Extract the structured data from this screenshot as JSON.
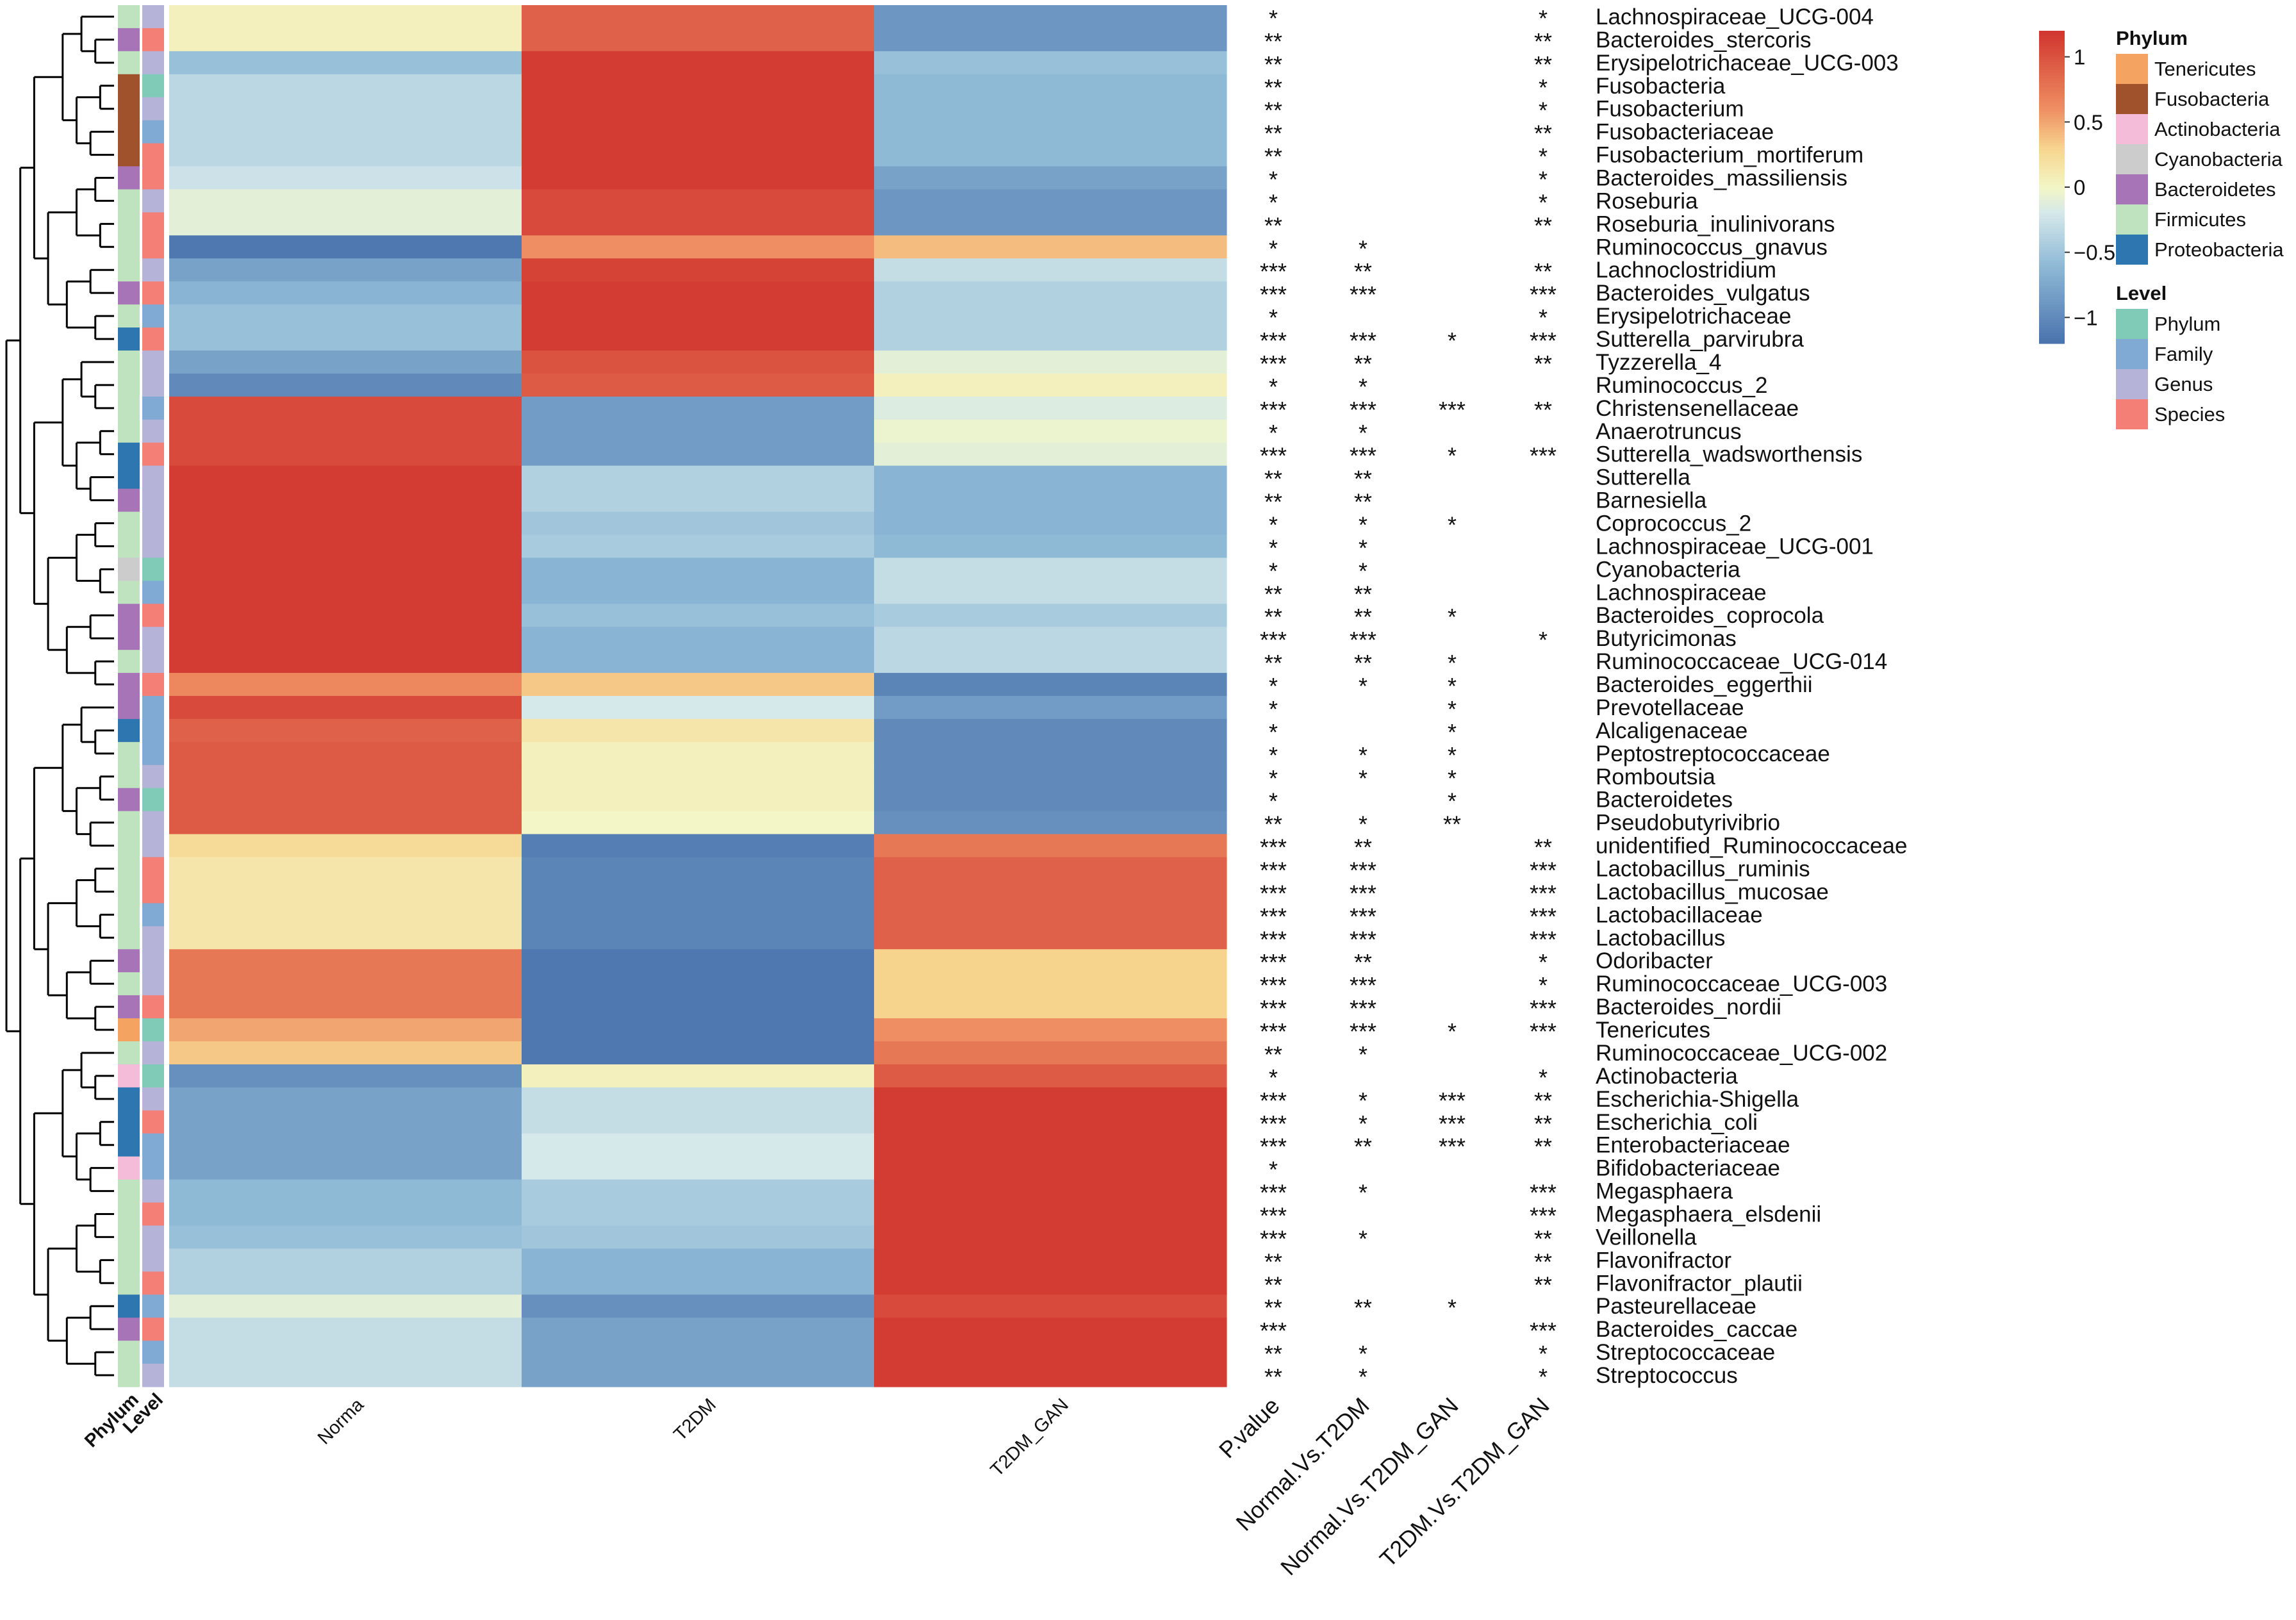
{
  "chart_data": {
    "type": "heatmap",
    "title": "",
    "groups": [
      "Norma",
      "T2DM",
      "T2DM_GAN"
    ],
    "significance_headers": [
      "P.value",
      "Normal.Vs.T2DM",
      "Normal.Vs.T2DM_GAN",
      "T2DM.Vs.T2DM_GAN"
    ],
    "annotation_headers": [
      "Phylum",
      "Level"
    ],
    "color_scale": {
      "min": -1.2,
      "max": 1.2,
      "stops": [
        {
          "value": -1.2,
          "color": "#4a72ad"
        },
        {
          "value": -0.6,
          "color": "#8fbad6"
        },
        {
          "value": -0.2,
          "color": "#d5e8ea"
        },
        {
          "value": 0.0,
          "color": "#f3f6c6"
        },
        {
          "value": 0.3,
          "color": "#f7d48e"
        },
        {
          "value": 0.6,
          "color": "#ee8e62"
        },
        {
          "value": 1.2,
          "color": "#d0342f"
        }
      ],
      "ticks": [
        1,
        0.5,
        0,
        -0.5,
        -1
      ],
      "tick_labels": [
        "1",
        "0.5",
        "0",
        "−0.5",
        "−1"
      ]
    },
    "phylum_legend": {
      "title": "Phylum",
      "items": [
        {
          "name": "Tenericutes",
          "color": "#f4a460"
        },
        {
          "name": "Fusobacteria",
          "color": "#a0522d"
        },
        {
          "name": "Actinobacteria",
          "color": "#f5bcd9"
        },
        {
          "name": "Cyanobacteria",
          "color": "#cccccc"
        },
        {
          "name": "Bacteroidetes",
          "color": "#a874b8"
        },
        {
          "name": "Firmicutes",
          "color": "#bfe2bf"
        },
        {
          "name": "Proteobacteria",
          "color": "#2e76b0"
        }
      ]
    },
    "level_legend": {
      "title": "Level",
      "items": [
        {
          "name": "Phylum",
          "color": "#7fcbb7"
        },
        {
          "name": "Family",
          "color": "#80aad4"
        },
        {
          "name": "Genus",
          "color": "#b5b4d8"
        },
        {
          "name": "Species",
          "color": "#f37f77"
        }
      ]
    },
    "rows": [
      {
        "taxon": "Lachnospiraceae_UCG-004",
        "phylum": "Firmicutes",
        "level": "Genus",
        "values": [
          0.05,
          0.9,
          -0.9
        ],
        "sig": [
          "*",
          "",
          "",
          "*"
        ]
      },
      {
        "taxon": "Bacteroides_stercoris",
        "phylum": "Bacteroidetes",
        "level": "Species",
        "values": [
          0.05,
          0.9,
          -0.9
        ],
        "sig": [
          "**",
          "",
          "",
          "**"
        ]
      },
      {
        "taxon": "Erysipelotrichaceae_UCG-003",
        "phylum": "Firmicutes",
        "level": "Genus",
        "values": [
          -0.55,
          1.15,
          -0.55
        ],
        "sig": [
          "**",
          "",
          "",
          "**"
        ]
      },
      {
        "taxon": "Fusobacteria",
        "phylum": "Fusobacteria",
        "level": "Phylum",
        "values": [
          -0.35,
          1.15,
          -0.6
        ],
        "sig": [
          "**",
          "",
          "",
          "*"
        ]
      },
      {
        "taxon": "Fusobacterium",
        "phylum": "Fusobacteria",
        "level": "Genus",
        "values": [
          -0.35,
          1.15,
          -0.6
        ],
        "sig": [
          "**",
          "",
          "",
          "*"
        ]
      },
      {
        "taxon": "Fusobacteriaceae",
        "phylum": "Fusobacteria",
        "level": "Family",
        "values": [
          -0.35,
          1.15,
          -0.6
        ],
        "sig": [
          "**",
          "",
          "",
          "**"
        ]
      },
      {
        "taxon": "Fusobacterium_mortiferum",
        "phylum": "Fusobacteria",
        "level": "Species",
        "values": [
          -0.35,
          1.15,
          -0.6
        ],
        "sig": [
          "**",
          "",
          "",
          "*"
        ]
      },
      {
        "taxon": "Bacteroides_massiliensis",
        "phylum": "Bacteroidetes",
        "level": "Species",
        "values": [
          -0.25,
          1.15,
          -0.8
        ],
        "sig": [
          "*",
          "",
          "",
          "*"
        ]
      },
      {
        "taxon": "Roseburia",
        "phylum": "Firmicutes",
        "level": "Genus",
        "values": [
          -0.1,
          1.05,
          -0.9
        ],
        "sig": [
          "*",
          "",
          "",
          "*"
        ]
      },
      {
        "taxon": "Roseburia_inulinivorans",
        "phylum": "Firmicutes",
        "level": "Species",
        "values": [
          -0.1,
          1.05,
          -0.9
        ],
        "sig": [
          "**",
          "",
          "",
          "**"
        ]
      },
      {
        "taxon": "Ruminococcus_gnavus",
        "phylum": "Firmicutes",
        "level": "Species",
        "values": [
          -1.15,
          0.6,
          0.4
        ],
        "sig": [
          "*",
          "*",
          "",
          ""
        ]
      },
      {
        "taxon": "Lachnoclostridium",
        "phylum": "Firmicutes",
        "level": "Genus",
        "values": [
          -0.8,
          1.1,
          -0.3
        ],
        "sig": [
          "***",
          "**",
          "",
          "**"
        ]
      },
      {
        "taxon": "Bacteroides_vulgatus",
        "phylum": "Bacteroidetes",
        "level": "Species",
        "values": [
          -0.65,
          1.15,
          -0.4
        ],
        "sig": [
          "***",
          "***",
          "",
          "***"
        ]
      },
      {
        "taxon": "Erysipelotrichaceae",
        "phylum": "Firmicutes",
        "level": "Family",
        "values": [
          -0.55,
          1.15,
          -0.4
        ],
        "sig": [
          "*",
          "",
          "",
          "*"
        ]
      },
      {
        "taxon": "Sutterella_parvirubra",
        "phylum": "Proteobacteria",
        "level": "Species",
        "values": [
          -0.55,
          1.15,
          -0.4
        ],
        "sig": [
          "***",
          "***",
          "*",
          "***"
        ]
      },
      {
        "taxon": "Tyzzerella_4",
        "phylum": "Firmicutes",
        "level": "Genus",
        "values": [
          -0.8,
          1.0,
          -0.1
        ],
        "sig": [
          "***",
          "**",
          "",
          "**"
        ]
      },
      {
        "taxon": "Ruminococcus_2",
        "phylum": "Firmicutes",
        "level": "Genus",
        "values": [
          -1.0,
          0.95,
          0.05
        ],
        "sig": [
          "*",
          "*",
          "",
          ""
        ]
      },
      {
        "taxon": "Christensenellaceae",
        "phylum": "Firmicutes",
        "level": "Family",
        "values": [
          1.05,
          -0.85,
          -0.15
        ],
        "sig": [
          "***",
          "***",
          "***",
          "**"
        ]
      },
      {
        "taxon": "Anaerotruncus",
        "phylum": "Firmicutes",
        "level": "Genus",
        "values": [
          1.05,
          -0.85,
          -0.05
        ],
        "sig": [
          "*",
          "*",
          "",
          ""
        ]
      },
      {
        "taxon": "Sutterella_wadsworthensis",
        "phylum": "Proteobacteria",
        "level": "Species",
        "values": [
          1.05,
          -0.85,
          -0.1
        ],
        "sig": [
          "***",
          "***",
          "*",
          "***"
        ]
      },
      {
        "taxon": "Sutterella",
        "phylum": "Proteobacteria",
        "level": "Genus",
        "values": [
          1.15,
          -0.4,
          -0.65
        ],
        "sig": [
          "**",
          "**",
          "",
          ""
        ]
      },
      {
        "taxon": "Barnesiella",
        "phylum": "Bacteroidetes",
        "level": "Genus",
        "values": [
          1.15,
          -0.4,
          -0.65
        ],
        "sig": [
          "**",
          "**",
          "",
          ""
        ]
      },
      {
        "taxon": "Coprococcus_2",
        "phylum": "Firmicutes",
        "level": "Genus",
        "values": [
          1.15,
          -0.5,
          -0.65
        ],
        "sig": [
          "*",
          "*",
          "*",
          ""
        ]
      },
      {
        "taxon": "Lachnospiraceae_UCG-001",
        "phylum": "Firmicutes",
        "level": "Genus",
        "values": [
          1.15,
          -0.45,
          -0.6
        ],
        "sig": [
          "*",
          "*",
          "",
          ""
        ]
      },
      {
        "taxon": "Cyanobacteria",
        "phylum": "Cyanobacteria",
        "level": "Phylum",
        "values": [
          1.15,
          -0.65,
          -0.3
        ],
        "sig": [
          "*",
          "*",
          "",
          ""
        ]
      },
      {
        "taxon": "Lachnospiraceae",
        "phylum": "Firmicutes",
        "level": "Family",
        "values": [
          1.15,
          -0.65,
          -0.3
        ],
        "sig": [
          "**",
          "**",
          "",
          ""
        ]
      },
      {
        "taxon": "Bacteroides_coprocola",
        "phylum": "Bacteroidetes",
        "level": "Species",
        "values": [
          1.15,
          -0.55,
          -0.45
        ],
        "sig": [
          "**",
          "**",
          "*",
          ""
        ]
      },
      {
        "taxon": "Butyricimonas",
        "phylum": "Bacteroidetes",
        "level": "Genus",
        "values": [
          1.15,
          -0.65,
          -0.35
        ],
        "sig": [
          "***",
          "***",
          "",
          "*"
        ]
      },
      {
        "taxon": "Ruminococcaceae_UCG-014",
        "phylum": "Firmicutes",
        "level": "Genus",
        "values": [
          1.15,
          -0.65,
          -0.35
        ],
        "sig": [
          "**",
          "**",
          "*",
          ""
        ]
      },
      {
        "taxon": "Bacteroides_eggerthii",
        "phylum": "Bacteroidetes",
        "level": "Species",
        "values": [
          0.65,
          0.35,
          -1.05
        ],
        "sig": [
          "*",
          "*",
          "*",
          ""
        ]
      },
      {
        "taxon": "Prevotellaceae",
        "phylum": "Bacteroidetes",
        "level": "Family",
        "values": [
          1.05,
          -0.2,
          -0.85
        ],
        "sig": [
          "*",
          "",
          "*",
          ""
        ]
      },
      {
        "taxon": "Alcaligenaceae",
        "phylum": "Proteobacteria",
        "level": "Family",
        "values": [
          0.9,
          0.15,
          -1.0
        ],
        "sig": [
          "*",
          "",
          "*",
          ""
        ]
      },
      {
        "taxon": "Peptostreptococcaceae",
        "phylum": "Firmicutes",
        "level": "Family",
        "values": [
          0.95,
          0.05,
          -1.0
        ],
        "sig": [
          "*",
          "*",
          "*",
          ""
        ]
      },
      {
        "taxon": "Romboutsia",
        "phylum": "Firmicutes",
        "level": "Genus",
        "values": [
          0.95,
          0.05,
          -1.0
        ],
        "sig": [
          "*",
          "*",
          "*",
          ""
        ]
      },
      {
        "taxon": "Bacteroidetes",
        "phylum": "Bacteroidetes",
        "level": "Phylum",
        "values": [
          0.95,
          0.05,
          -1.0
        ],
        "sig": [
          "*",
          "",
          "*",
          ""
        ]
      },
      {
        "taxon": "Pseudobutyrivibrio",
        "phylum": "Firmicutes",
        "level": "Genus",
        "values": [
          0.95,
          0.0,
          -0.95
        ],
        "sig": [
          "**",
          "*",
          "**",
          ""
        ]
      },
      {
        "taxon": "unidentified_Ruminococcaceae",
        "phylum": "Firmicutes",
        "level": "Genus",
        "values": [
          0.25,
          -1.1,
          0.75
        ],
        "sig": [
          "***",
          "**",
          "",
          "**"
        ]
      },
      {
        "taxon": "Lactobacillus_ruminis",
        "phylum": "Firmicutes",
        "level": "Species",
        "values": [
          0.15,
          -1.05,
          0.9
        ],
        "sig": [
          "***",
          "***",
          "",
          "***"
        ]
      },
      {
        "taxon": "Lactobacillus_mucosae",
        "phylum": "Firmicutes",
        "level": "Species",
        "values": [
          0.15,
          -1.05,
          0.9
        ],
        "sig": [
          "***",
          "***",
          "",
          "***"
        ]
      },
      {
        "taxon": "Lactobacillaceae",
        "phylum": "Firmicutes",
        "level": "Family",
        "values": [
          0.15,
          -1.05,
          0.9
        ],
        "sig": [
          "***",
          "***",
          "",
          "***"
        ]
      },
      {
        "taxon": "Lactobacillus",
        "phylum": "Firmicutes",
        "level": "Genus",
        "values": [
          0.15,
          -1.05,
          0.9
        ],
        "sig": [
          "***",
          "***",
          "",
          "***"
        ]
      },
      {
        "taxon": "Odoribacter",
        "phylum": "Bacteroidetes",
        "level": "Genus",
        "values": [
          0.75,
          -1.15,
          0.3
        ],
        "sig": [
          "***",
          "**",
          "",
          "*"
        ]
      },
      {
        "taxon": "Ruminococcaceae_UCG-003",
        "phylum": "Firmicutes",
        "level": "Genus",
        "values": [
          0.75,
          -1.15,
          0.3
        ],
        "sig": [
          "***",
          "***",
          "",
          "*"
        ]
      },
      {
        "taxon": "Bacteroides_nordii",
        "phylum": "Bacteroidetes",
        "level": "Species",
        "values": [
          0.75,
          -1.15,
          0.3
        ],
        "sig": [
          "***",
          "***",
          "",
          "***"
        ]
      },
      {
        "taxon": "Tenericutes",
        "phylum": "Tenericutes",
        "level": "Phylum",
        "values": [
          0.5,
          -1.15,
          0.6
        ],
        "sig": [
          "***",
          "***",
          "*",
          "***"
        ]
      },
      {
        "taxon": "Ruminococcaceae_UCG-002",
        "phylum": "Firmicutes",
        "level": "Genus",
        "values": [
          0.35,
          -1.15,
          0.75
        ],
        "sig": [
          "**",
          "*",
          "",
          ""
        ]
      },
      {
        "taxon": "Actinobacteria",
        "phylum": "Actinobacteria",
        "level": "Phylum",
        "values": [
          -0.95,
          0.05,
          0.95
        ],
        "sig": [
          "*",
          "",
          "",
          "*"
        ]
      },
      {
        "taxon": "Escherichia-Shigella",
        "phylum": "Proteobacteria",
        "level": "Genus",
        "values": [
          -0.8,
          -0.3,
          1.15
        ],
        "sig": [
          "***",
          "*",
          "***",
          "**"
        ]
      },
      {
        "taxon": "Escherichia_coli",
        "phylum": "Proteobacteria",
        "level": "Species",
        "values": [
          -0.8,
          -0.3,
          1.15
        ],
        "sig": [
          "***",
          "*",
          "***",
          "**"
        ]
      },
      {
        "taxon": "Enterobacteriaceae",
        "phylum": "Proteobacteria",
        "level": "Family",
        "values": [
          -0.8,
          -0.2,
          1.15
        ],
        "sig": [
          "***",
          "**",
          "***",
          "**"
        ]
      },
      {
        "taxon": "Bifidobacteriaceae",
        "phylum": "Actinobacteria",
        "level": "Family",
        "values": [
          -0.8,
          -0.2,
          1.15
        ],
        "sig": [
          "*",
          "",
          "",
          ""
        ]
      },
      {
        "taxon": "Megasphaera",
        "phylum": "Firmicutes",
        "level": "Genus",
        "values": [
          -0.6,
          -0.45,
          1.15
        ],
        "sig": [
          "***",
          "*",
          "",
          "***"
        ]
      },
      {
        "taxon": "Megasphaera_elsdenii",
        "phylum": "Firmicutes",
        "level": "Species",
        "values": [
          -0.6,
          -0.45,
          1.15
        ],
        "sig": [
          "***",
          "",
          "",
          "***"
        ]
      },
      {
        "taxon": "Veillonella",
        "phylum": "Firmicutes",
        "level": "Genus",
        "values": [
          -0.55,
          -0.5,
          1.15
        ],
        "sig": [
          "***",
          "*",
          "",
          "**"
        ]
      },
      {
        "taxon": "Flavonifractor",
        "phylum": "Firmicutes",
        "level": "Genus",
        "values": [
          -0.4,
          -0.65,
          1.15
        ],
        "sig": [
          "**",
          "",
          "",
          "**"
        ]
      },
      {
        "taxon": "Flavonifractor_plautii",
        "phylum": "Firmicutes",
        "level": "Species",
        "values": [
          -0.4,
          -0.65,
          1.15
        ],
        "sig": [
          "**",
          "",
          "",
          "**"
        ]
      },
      {
        "taxon": "Pasteurellaceae",
        "phylum": "Proteobacteria",
        "level": "Family",
        "values": [
          -0.1,
          -0.95,
          1.05
        ],
        "sig": [
          "**",
          "**",
          "*",
          ""
        ]
      },
      {
        "taxon": "Bacteroides_caccae",
        "phylum": "Bacteroidetes",
        "level": "Species",
        "values": [
          -0.3,
          -0.8,
          1.15
        ],
        "sig": [
          "***",
          "",
          "",
          "***"
        ]
      },
      {
        "taxon": "Streptococcaceae",
        "phylum": "Firmicutes",
        "level": "Family",
        "values": [
          -0.3,
          -0.8,
          1.15
        ],
        "sig": [
          "**",
          "*",
          "",
          "*"
        ]
      },
      {
        "taxon": "Streptococcus",
        "phylum": "Firmicutes",
        "level": "Genus",
        "values": [
          -0.3,
          -0.8,
          1.15
        ],
        "sig": [
          "**",
          "*",
          "",
          "*"
        ]
      }
    ]
  }
}
